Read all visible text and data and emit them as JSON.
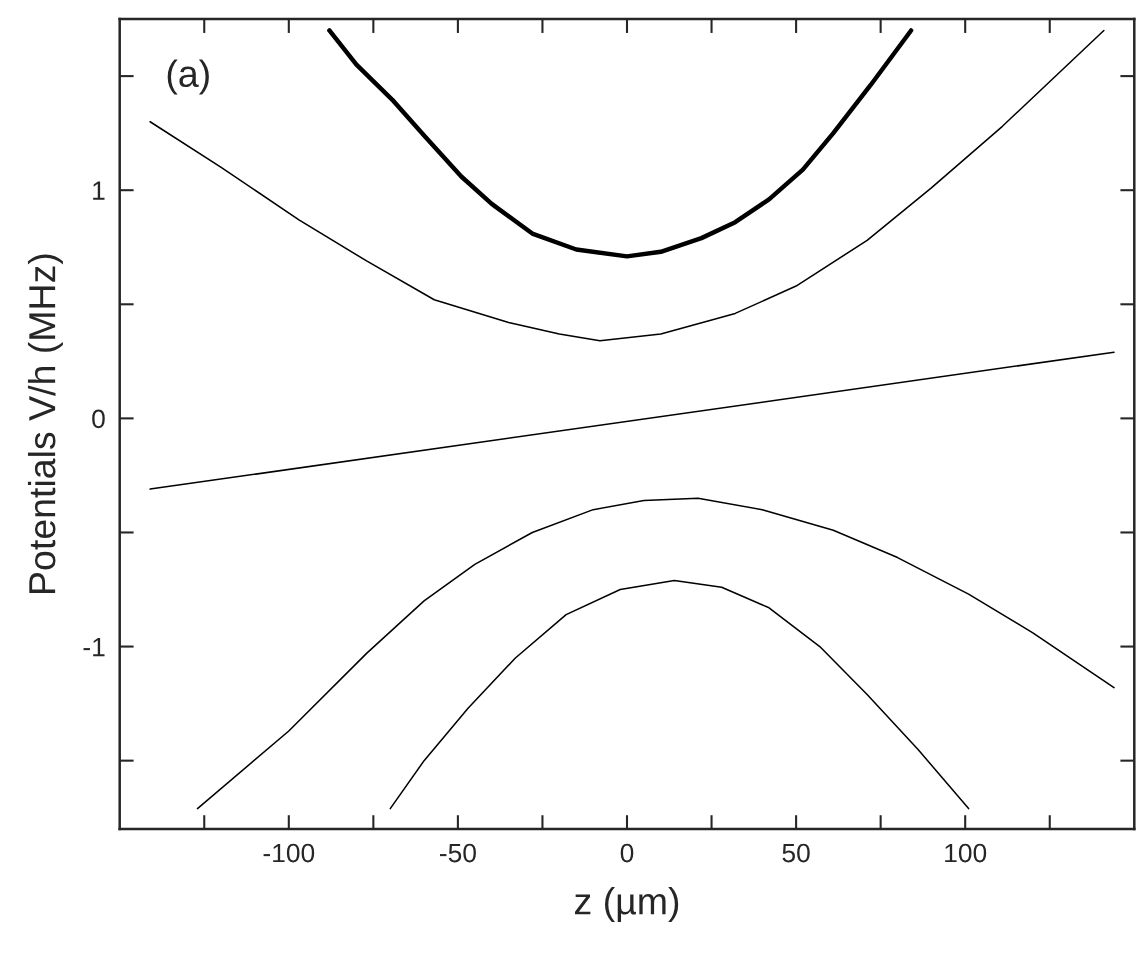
{
  "chart_data": {
    "type": "line",
    "xlabel": "z (µm)",
    "ylabel": "Potentials V/h (MHz)",
    "annotations": [
      "(a)"
    ],
    "xlim": [
      -150,
      150
    ],
    "ylim": [
      -1.8,
      1.75
    ],
    "xticks": [
      {
        "value": -125,
        "label": null
      },
      -100,
      {
        "value": -75,
        "label": null
      },
      -50,
      {
        "value": -25,
        "label": null
      },
      0,
      {
        "value": 25,
        "label": null
      },
      50,
      {
        "value": 75,
        "label": null
      },
      100,
      {
        "value": 125,
        "label": null
      }
    ],
    "yticks": [
      {
        "value": -1.5,
        "label": null
      },
      -1,
      {
        "value": -0.5,
        "label": null
      },
      0,
      {
        "value": 0.5,
        "label": null
      },
      1,
      {
        "value": 1.5,
        "label": null
      }
    ],
    "grid": false,
    "legend": false,
    "marker": "none",
    "line_style": "solid",
    "series": [
      {
        "color": "#000000",
        "x": [
          -88,
          -80,
          -69,
          -60,
          -49,
          -40,
          -28,
          -15,
          0,
          10,
          22,
          32,
          42,
          52,
          61,
          72,
          84
        ],
        "values": [
          1.7,
          1.55,
          1.39,
          1.24,
          1.06,
          0.94,
          0.81,
          0.74,
          0.71,
          0.73,
          0.79,
          0.86,
          0.96,
          1.09,
          1.25,
          1.46,
          1.7
        ]
      },
      {
        "color": "#000000",
        "x": [
          -141,
          -120,
          -97,
          -77,
          -57,
          -35,
          -20,
          -8,
          10,
          32,
          50,
          71,
          90,
          111,
          141
        ],
        "values": [
          1.3,
          1.1,
          0.87,
          0.69,
          0.52,
          0.42,
          0.37,
          0.34,
          0.37,
          0.46,
          0.58,
          0.78,
          1.01,
          1.28,
          1.7
        ]
      },
      {
        "color": "#000000",
        "x": [
          -141,
          144
        ],
        "values": [
          -0.31,
          0.29
        ]
      },
      {
        "color": "#000000",
        "x": [
          -127,
          -100,
          -77,
          -60,
          -45,
          -28,
          -10,
          5,
          21,
          40,
          61,
          80,
          101,
          120,
          144
        ],
        "values": [
          -1.71,
          -1.37,
          -1.03,
          -0.8,
          -0.64,
          -0.5,
          -0.4,
          -0.36,
          -0.35,
          -0.4,
          -0.49,
          -0.61,
          -0.77,
          -0.94,
          -1.18
        ]
      },
      {
        "color": "#000000",
        "x": [
          -70,
          -60,
          -47,
          -33,
          -18,
          -2,
          14,
          28,
          42,
          57,
          71,
          86,
          101
        ],
        "values": [
          -1.71,
          -1.5,
          -1.27,
          -1.05,
          -0.86,
          -0.75,
          -0.71,
          -0.74,
          -0.83,
          -1.0,
          -1.21,
          -1.45,
          -1.71
        ]
      }
    ]
  }
}
